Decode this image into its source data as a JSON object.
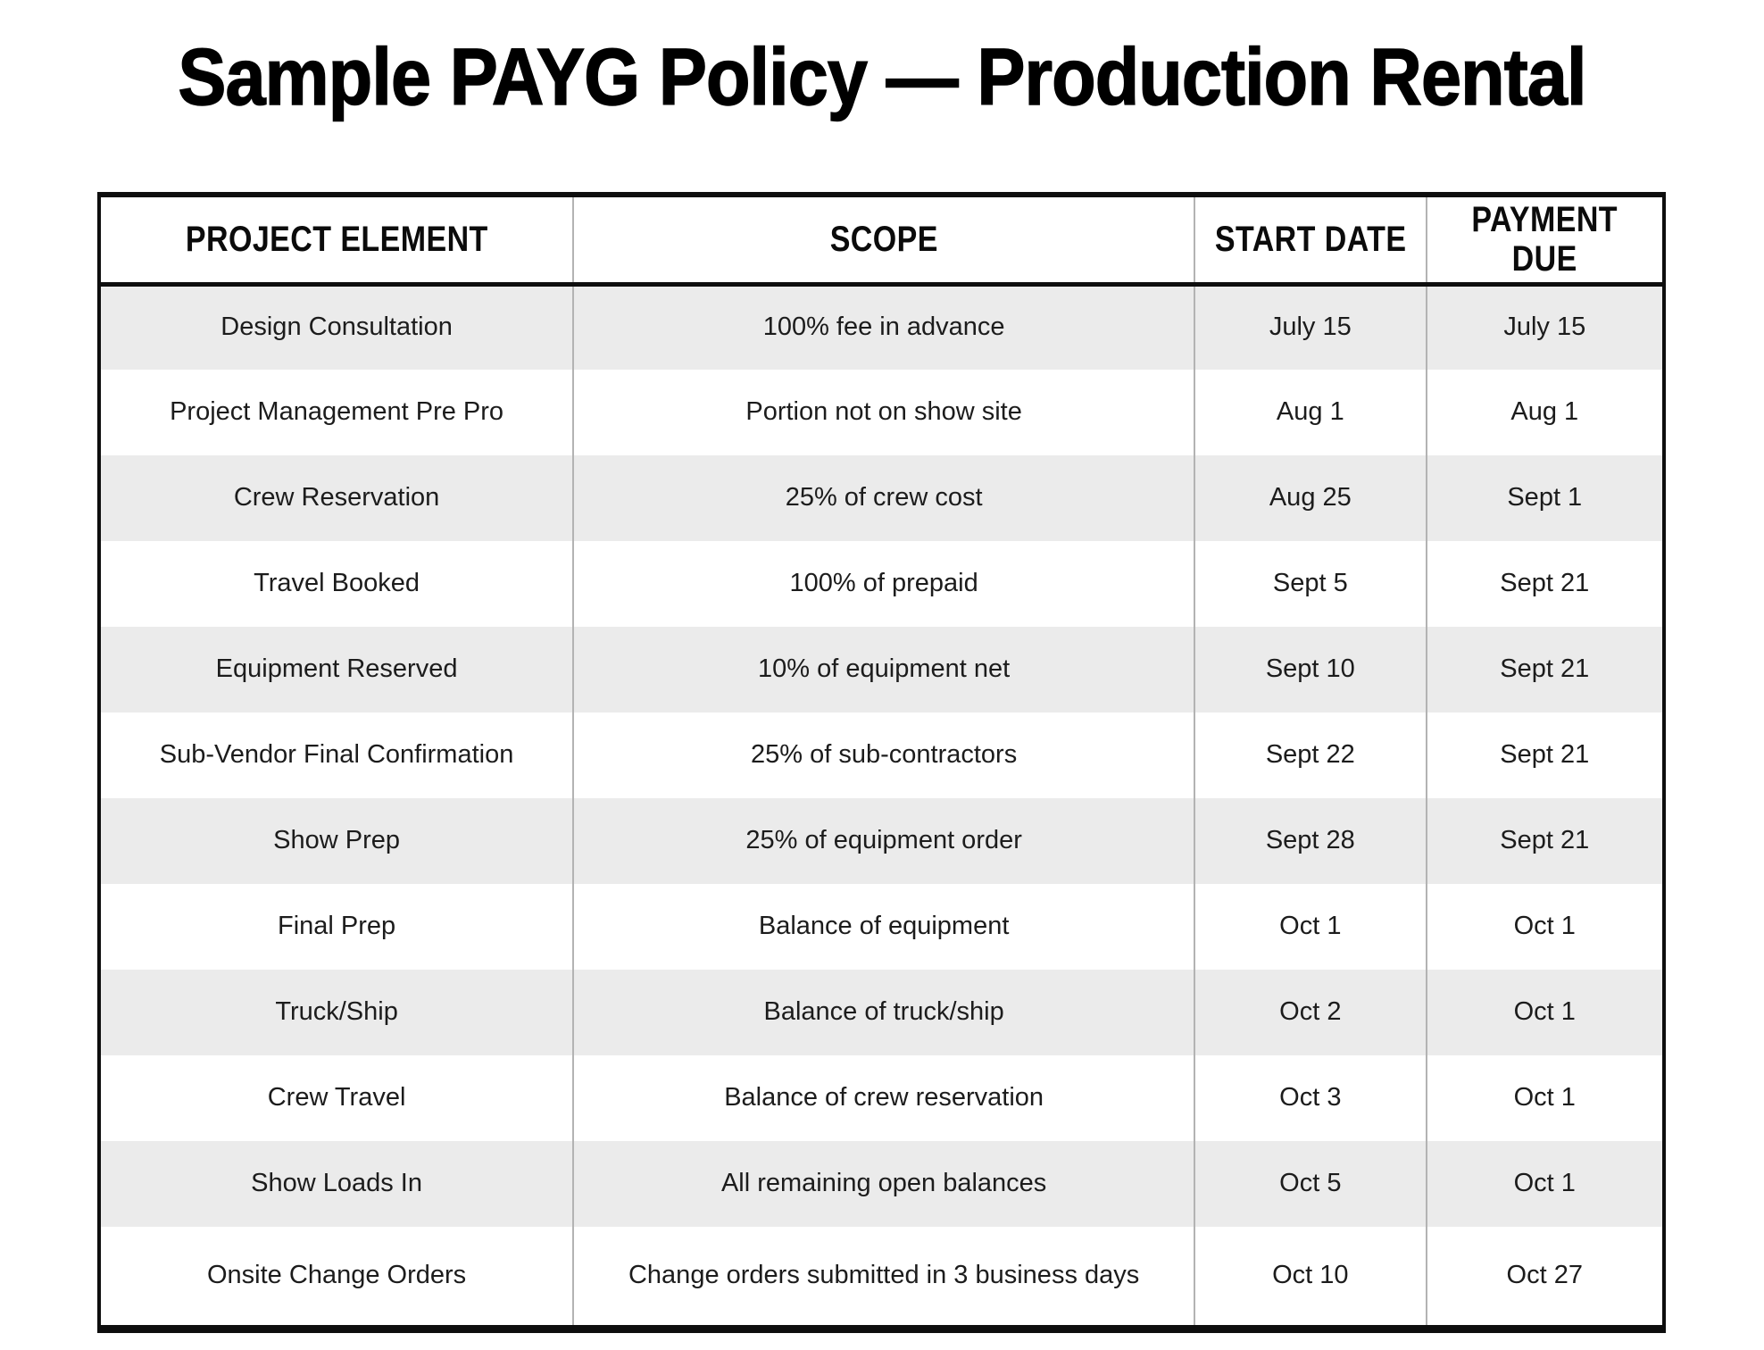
{
  "page": {
    "title": "Sample PAYG Policy — Production Rental",
    "background": "#ffffff"
  },
  "table": {
    "columns": [
      {
        "id": "project_element",
        "label": "PROJECT ELEMENT"
      },
      {
        "id": "scope",
        "label": "SCOPE"
      },
      {
        "id": "start_date",
        "label": "START DATE"
      },
      {
        "id": "payment_due",
        "label": "PAYMENT\nDUE"
      }
    ],
    "rows": [
      [
        "Design Consultation",
        "100% fee in advance",
        "July 15",
        "July 15"
      ],
      [
        "Project Management Pre Pro",
        "Portion not on show site",
        "Aug 1",
        "Aug 1"
      ],
      [
        "Crew Reservation",
        "25% of crew cost",
        "Aug 25",
        "Sept 1"
      ],
      [
        "Travel Booked",
        "100% of prepaid",
        "Sept 5",
        "Sept 21"
      ],
      [
        "Equipment Reserved",
        "10% of equipment net",
        "Sept 10",
        "Sept 21"
      ],
      [
        "Sub-Vendor Final Confirmation",
        "25% of sub-contractors",
        "Sept 22",
        "Sept 21"
      ],
      [
        "Show Prep",
        "25% of equipment order",
        "Sept 28",
        "Sept 21"
      ],
      [
        "Final Prep",
        "Balance of equipment",
        "Oct 1",
        "Oct 1"
      ],
      [
        "Truck/Ship",
        "Balance of truck/ship",
        "Oct 2",
        "Oct 1"
      ],
      [
        "Crew Travel",
        "Balance of crew reservation",
        "Oct 3",
        "Oct 1"
      ],
      [
        "Show Loads In",
        "All remaining open balances",
        "Oct 5",
        "Oct 1"
      ],
      [
        "Onsite Change Orders",
        "Change orders submitted in 3 business days",
        "Oct 10",
        "Oct 27"
      ]
    ],
    "styles": {
      "zebra_gray": "#ebebeb",
      "border_black": "#0e0e0e",
      "separator_gray": "#b3b3b3",
      "text_color": "#1c1c1c"
    }
  }
}
